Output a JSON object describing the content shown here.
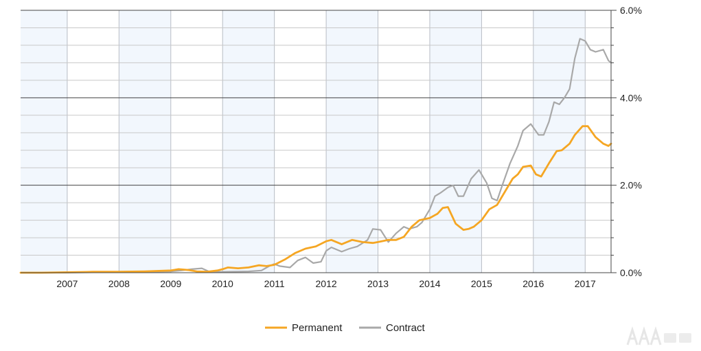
{
  "chart_data": {
    "type": "line",
    "title": "",
    "xlabel": "",
    "ylabel": "",
    "x_ticks": [
      "2007",
      "2008",
      "2009",
      "2010",
      "2011",
      "2012",
      "2013",
      "2014",
      "2015",
      "2016",
      "2017"
    ],
    "x_range": [
      2006.1,
      2017.35
    ],
    "ylim": [
      0,
      6
    ],
    "y_ticks": [
      "0.0%",
      "2.0%",
      "4.0%",
      "6.0%"
    ],
    "y_axis_side": "right",
    "grid": true,
    "shaded_bands": "alternate years",
    "legend_position": "bottom-center",
    "series": [
      {
        "name": "Permanent",
        "color": "#f5a623",
        "points": [
          [
            2006.1,
            0
          ],
          [
            2006.5,
            0
          ],
          [
            2007.0,
            0.01
          ],
          [
            2007.5,
            0.02
          ],
          [
            2008.0,
            0.02
          ],
          [
            2008.5,
            0.03
          ],
          [
            2009.0,
            0.05
          ],
          [
            2009.15,
            0.08
          ],
          [
            2009.35,
            0.06
          ],
          [
            2009.5,
            0.03
          ],
          [
            2009.7,
            0.02
          ],
          [
            2009.9,
            0.05
          ],
          [
            2010.0,
            0.08
          ],
          [
            2010.1,
            0.12
          ],
          [
            2010.3,
            0.1
          ],
          [
            2010.5,
            0.12
          ],
          [
            2010.7,
            0.17
          ],
          [
            2010.85,
            0.15
          ],
          [
            2011.0,
            0.18
          ],
          [
            2011.2,
            0.3
          ],
          [
            2011.4,
            0.45
          ],
          [
            2011.6,
            0.55
          ],
          [
            2011.8,
            0.6
          ],
          [
            2012.0,
            0.72
          ],
          [
            2012.1,
            0.75
          ],
          [
            2012.3,
            0.65
          ],
          [
            2012.5,
            0.75
          ],
          [
            2012.7,
            0.7
          ],
          [
            2012.9,
            0.68
          ],
          [
            2013.0,
            0.7
          ],
          [
            2013.2,
            0.75
          ],
          [
            2013.35,
            0.75
          ],
          [
            2013.5,
            0.82
          ],
          [
            2013.65,
            1.05
          ],
          [
            2013.8,
            1.2
          ],
          [
            2014.0,
            1.25
          ],
          [
            2014.15,
            1.35
          ],
          [
            2014.25,
            1.48
          ],
          [
            2014.35,
            1.5
          ],
          [
            2014.5,
            1.12
          ],
          [
            2014.65,
            0.98
          ],
          [
            2014.75,
            1.0
          ],
          [
            2014.85,
            1.05
          ],
          [
            2015.0,
            1.2
          ],
          [
            2015.15,
            1.45
          ],
          [
            2015.3,
            1.55
          ],
          [
            2015.5,
            1.95
          ],
          [
            2015.6,
            2.15
          ],
          [
            2015.7,
            2.25
          ],
          [
            2015.8,
            2.42
          ],
          [
            2015.95,
            2.45
          ],
          [
            2016.05,
            2.25
          ],
          [
            2016.15,
            2.2
          ],
          [
            2016.3,
            2.5
          ],
          [
            2016.45,
            2.78
          ],
          [
            2016.55,
            2.8
          ],
          [
            2016.7,
            2.95
          ],
          [
            2016.8,
            3.15
          ],
          [
            2016.95,
            3.35
          ],
          [
            2017.05,
            3.35
          ],
          [
            2017.2,
            3.1
          ],
          [
            2017.35,
            2.95
          ],
          [
            2017.45,
            2.9
          ],
          [
            2017.5,
            2.95
          ]
        ]
      },
      {
        "name": "Contract",
        "color": "#a8a8a8",
        "points": [
          [
            2006.1,
            0
          ],
          [
            2006.5,
            0
          ],
          [
            2007.0,
            0
          ],
          [
            2007.5,
            0.01
          ],
          [
            2008.0,
            0.01
          ],
          [
            2008.5,
            0.02
          ],
          [
            2009.0,
            0.03
          ],
          [
            2009.2,
            0.05
          ],
          [
            2009.4,
            0.08
          ],
          [
            2009.6,
            0.1
          ],
          [
            2009.75,
            0.02
          ],
          [
            2009.9,
            0.02
          ],
          [
            2010.0,
            0.02
          ],
          [
            2010.5,
            0.03
          ],
          [
            2010.75,
            0.05
          ],
          [
            2010.9,
            0.15
          ],
          [
            2011.0,
            0.2
          ],
          [
            2011.1,
            0.15
          ],
          [
            2011.3,
            0.12
          ],
          [
            2011.45,
            0.28
          ],
          [
            2011.6,
            0.35
          ],
          [
            2011.75,
            0.22
          ],
          [
            2011.9,
            0.25
          ],
          [
            2012.0,
            0.5
          ],
          [
            2012.1,
            0.58
          ],
          [
            2012.3,
            0.48
          ],
          [
            2012.45,
            0.55
          ],
          [
            2012.6,
            0.6
          ],
          [
            2012.8,
            0.75
          ],
          [
            2012.9,
            1.0
          ],
          [
            2013.05,
            0.98
          ],
          [
            2013.2,
            0.7
          ],
          [
            2013.35,
            0.9
          ],
          [
            2013.5,
            1.05
          ],
          [
            2013.6,
            1.0
          ],
          [
            2013.75,
            1.05
          ],
          [
            2013.85,
            1.15
          ],
          [
            2014.0,
            1.45
          ],
          [
            2014.1,
            1.75
          ],
          [
            2014.2,
            1.82
          ],
          [
            2014.35,
            1.95
          ],
          [
            2014.45,
            2.0
          ],
          [
            2014.55,
            1.75
          ],
          [
            2014.65,
            1.75
          ],
          [
            2014.8,
            2.15
          ],
          [
            2014.95,
            2.35
          ],
          [
            2015.1,
            2.05
          ],
          [
            2015.2,
            1.7
          ],
          [
            2015.3,
            1.65
          ],
          [
            2015.4,
            2.0
          ],
          [
            2015.55,
            2.5
          ],
          [
            2015.7,
            2.9
          ],
          [
            2015.8,
            3.25
          ],
          [
            2015.95,
            3.4
          ],
          [
            2016.1,
            3.15
          ],
          [
            2016.2,
            3.15
          ],
          [
            2016.3,
            3.45
          ],
          [
            2016.4,
            3.9
          ],
          [
            2016.5,
            3.85
          ],
          [
            2016.6,
            4.0
          ],
          [
            2016.7,
            4.2
          ],
          [
            2016.8,
            4.9
          ],
          [
            2016.9,
            5.35
          ],
          [
            2017.0,
            5.3
          ],
          [
            2017.1,
            5.1
          ],
          [
            2017.2,
            5.05
          ],
          [
            2017.35,
            5.1
          ],
          [
            2017.45,
            4.85
          ],
          [
            2017.5,
            4.8
          ]
        ]
      }
    ]
  }
}
